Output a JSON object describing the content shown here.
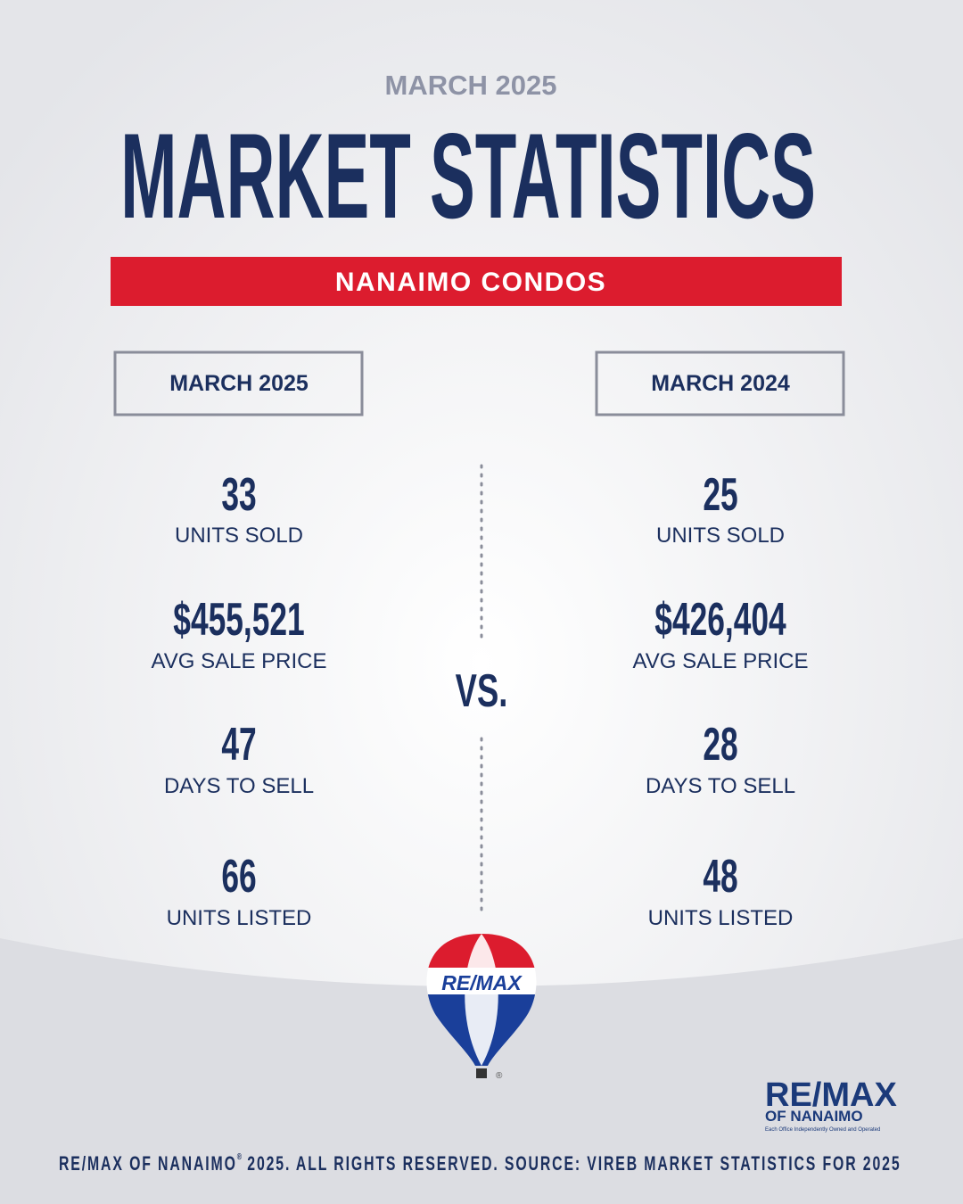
{
  "header": {
    "eyebrow": "MARCH 2025",
    "title": "MARKET STATISTICS",
    "banner": "NANAIMO CONDOS"
  },
  "columns": [
    {
      "label": "MARCH 2025",
      "stats": [
        {
          "value": "33",
          "label": "UNITS SOLD"
        },
        {
          "value": "$455,521",
          "label": "AVG SALE PRICE"
        },
        {
          "value": "47",
          "label": "DAYS TO SELL"
        },
        {
          "value": "66",
          "label": "UNITS LISTED"
        }
      ]
    },
    {
      "label": "MARCH 2024",
      "stats": [
        {
          "value": "25",
          "label": "UNITS SOLD"
        },
        {
          "value": "$426,404",
          "label": "AVG SALE PRICE"
        },
        {
          "value": "28",
          "label": "DAYS TO SELL"
        },
        {
          "value": "48",
          "label": "UNITS LISTED"
        }
      ]
    }
  ],
  "vs": "VS.",
  "balloon": {
    "logo": "RE/MAX",
    "mark": "®"
  },
  "brand": {
    "name": "RE/MAX",
    "office": "OF NANAIMO",
    "tagline": "Each Office Independently Owned and Operated"
  },
  "footer": {
    "owner": "RE/MAX OF NANAIMO",
    "mark": "®",
    "text": "2025. ALL RIGHTS RESERVED. SOURCE: VIREB MARKET STATISTICS FOR 2025"
  }
}
